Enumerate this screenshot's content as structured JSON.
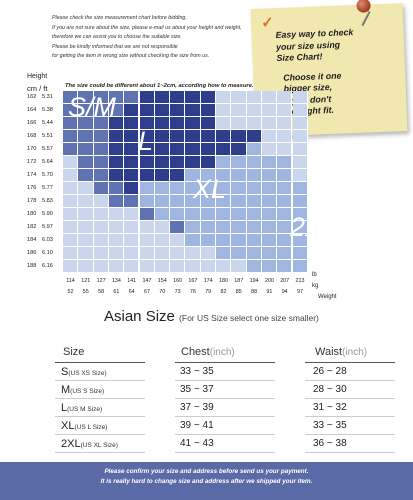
{
  "notes": [
    "Please check the size measurement chart before bidding.",
    "If you are not sure about the size, please e-mail us about your height and weight,",
    "therefore we can assist you to choose the suitable size.",
    "Please be kindly informed that we are not responsible",
    "for getting the item in wrong size without checking the size from us."
  ],
  "sticky": {
    "line1": "Easy way to check",
    "line2": "your size using",
    "line3": "Size Chart!",
    "line4": "Choose it one",
    "line5": "bigger size,",
    "line6": "if you don't",
    "line7": "like tight fit.",
    "check_mark": "✓"
  },
  "chart": {
    "height_label": "Height",
    "height_units": "cm / ft",
    "note": "The size could be different about 1~2cm, according how to measure.",
    "weight_units_lb": "lb",
    "weight_units_kg": "kg",
    "weight_label": "Weight",
    "zones": [
      "S/M",
      "L",
      "XL",
      "2XL"
    ],
    "colors": {
      "lightest": "#c9d6ec",
      "light": "#9fb6e0",
      "medium": "#5f73b3",
      "dark": "#2f3e8c",
      "blank": "#dde4f1"
    }
  },
  "chart_data": {
    "type": "heatmap",
    "rows": [
      {
        "cm": "162",
        "ft": "5.31"
      },
      {
        "cm": "164",
        "ft": "5.38"
      },
      {
        "cm": "166",
        "ft": "5.44"
      },
      {
        "cm": "168",
        "ft": "5.51"
      },
      {
        "cm": "170",
        "ft": "5.57"
      },
      {
        "cm": "172",
        "ft": "5.64"
      },
      {
        "cm": "174",
        "ft": "5.70"
      },
      {
        "cm": "176",
        "ft": "5.77"
      },
      {
        "cm": "178",
        "ft": "5.83"
      },
      {
        "cm": "180",
        "ft": "5.90"
      },
      {
        "cm": "182",
        "ft": "5.97"
      },
      {
        "cm": "184",
        "ft": "6.03"
      },
      {
        "cm": "186",
        "ft": "6.10"
      },
      {
        "cm": "188",
        "ft": "6.16"
      }
    ],
    "columns": [
      {
        "lb": "114",
        "kg": "52"
      },
      {
        "lb": "121",
        "kg": "55"
      },
      {
        "lb": "127",
        "kg": "58"
      },
      {
        "lb": "134",
        "kg": "61"
      },
      {
        "lb": "141",
        "kg": "64"
      },
      {
        "lb": "147",
        "kg": "67"
      },
      {
        "lb": "154",
        "kg": "70"
      },
      {
        "lb": "160",
        "kg": "73"
      },
      {
        "lb": "167",
        "kg": "76"
      },
      {
        "lb": "174",
        "kg": "79"
      },
      {
        "lb": "180",
        "kg": "82"
      },
      {
        "lb": "187",
        "kg": "85"
      },
      {
        "lb": "194",
        "kg": "88"
      },
      {
        "lb": "200",
        "kg": "91"
      },
      {
        "lb": "207",
        "kg": "94"
      },
      {
        "lb": "213",
        "kg": "97"
      }
    ],
    "grid": [
      "MMMMMDDDDDWWWWWW",
      "MMMMDDDDDDWWWWWW",
      "MMMDDDDDDDWWWWWW",
      "MMMDDDDDDDDDDWWW",
      "MMMDDDDDDDDDLWWW",
      "WMMDDDDDDDLLLLLW",
      "WMMDDDDDLLLLLLLW",
      "WWMMDLLLLLLLLLLL",
      "WWWMMLLLLLLLLLLL",
      "WWWWWMLLLLLLLLLL",
      "WWWWWWWMLLLLLLLL",
      "WWWWWWWWLLLLLLLL",
      "WWWWWWWWWWLLLLLL",
      "WWWWWWWWWWWWLLLL"
    ]
  },
  "asian": {
    "title": "Asian Size",
    "subtitle": "(For US Size select one size smaller)"
  },
  "size_table": {
    "headers": {
      "size": "Size",
      "chest": "Chest",
      "chest_unit": "(inch)",
      "waist": "Waist",
      "waist_unit": "(inch)"
    },
    "rows": [
      {
        "size": "S",
        "us": "(US XS Size)",
        "chest": "33 ~ 35",
        "waist": "26 ~ 28"
      },
      {
        "size": "M",
        "us": "(US S Size)",
        "chest": "35 ~ 37",
        "waist": "28 ~ 30"
      },
      {
        "size": "L",
        "us": "(US M Size)",
        "chest": "37 ~ 39",
        "waist": "31 ~ 32"
      },
      {
        "size": "XL",
        "us": "(US L Size)",
        "chest": "39 ~ 41",
        "waist": "33 ~ 35"
      },
      {
        "size": "2XL",
        "us": "(US XL Size)",
        "chest": "41 ~ 43",
        "waist": "36 ~ 38"
      }
    ]
  },
  "footer": {
    "line1": "Please confirm your size and address before send us your payment.",
    "line2": "It is really hard to change size and address after we shipped your item."
  }
}
